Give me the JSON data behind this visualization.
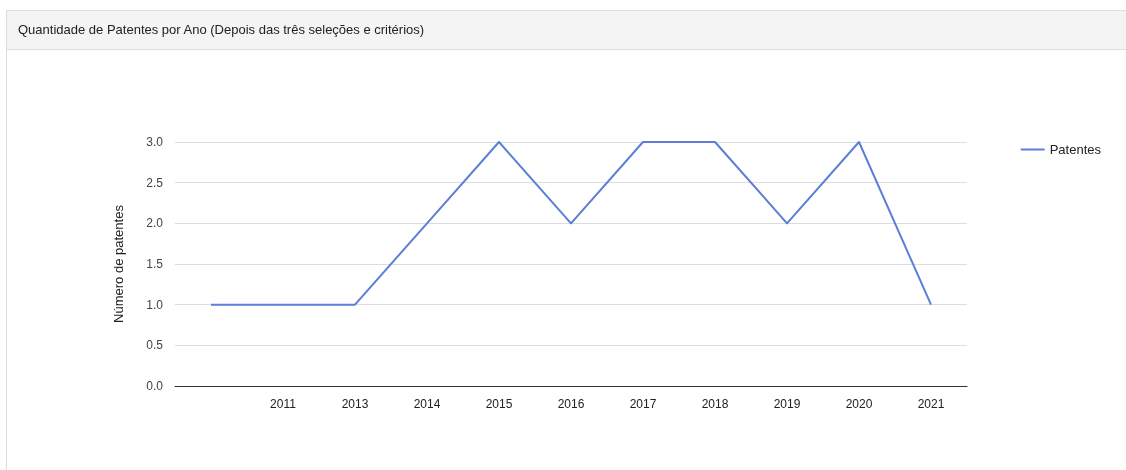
{
  "chart_data": {
    "type": "line",
    "title": "Quantidade de Patentes por Ano (Depois das três seleções e critérios)",
    "ylabel": "Número de patentes",
    "categories": [
      null,
      "2011",
      "2013",
      "2014",
      "2015",
      "2016",
      "2017",
      "2018",
      "2019",
      "2020",
      "2021"
    ],
    "series": [
      {
        "name": "Patentes",
        "color": "#5b7fd6",
        "values": [
          1,
          1,
          1,
          2,
          3,
          2,
          3,
          3,
          2,
          3,
          1
        ]
      }
    ],
    "ylim": [
      0,
      3
    ],
    "yticks": [
      {
        "value": 0,
        "label": "0.0"
      },
      {
        "value": 0.5,
        "label": "0.5"
      },
      {
        "value": 1,
        "label": "1.0"
      },
      {
        "value": 1.5,
        "label": "1.5"
      },
      {
        "value": 2,
        "label": "2.0"
      },
      {
        "value": 2.5,
        "label": "2.5"
      },
      {
        "value": 3,
        "label": "3.0"
      }
    ],
    "grid": "y",
    "legend": "right",
    "marker": "none"
  }
}
